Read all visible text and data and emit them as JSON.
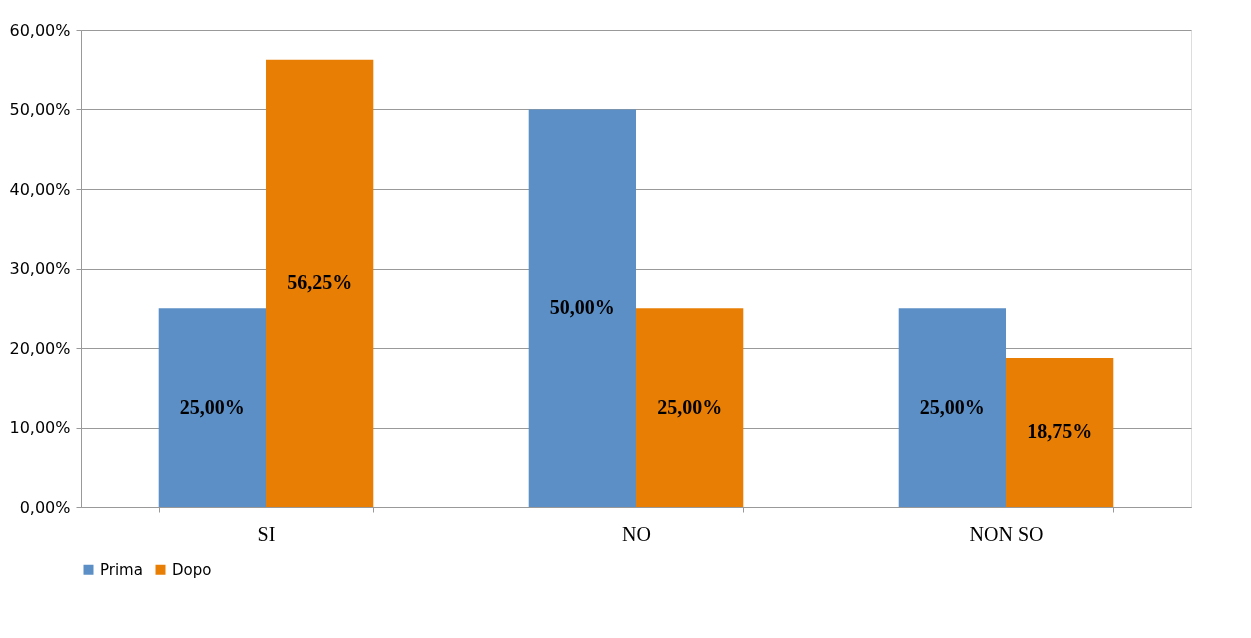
{
  "chart_data": {
    "type": "bar",
    "categories": [
      "SI",
      "NO",
      "NON SO"
    ],
    "series": [
      {
        "name": "Prima",
        "color": "#5b8fc6",
        "values": [
          25,
          50,
          25
        ],
        "value_labels": [
          "25,00%",
          "50,00%",
          "25,00%"
        ]
      },
      {
        "name": "Dopo",
        "color": "#e87e04",
        "values": [
          56.25,
          25,
          18.75
        ],
        "value_labels": [
          "56,25%",
          "25,00%",
          "18,75%"
        ]
      }
    ],
    "ylim": [
      0,
      60
    ],
    "yticks": [
      {
        "value": 0,
        "label": "0,00%"
      },
      {
        "value": 10,
        "label": "10,00%"
      },
      {
        "value": 20,
        "label": "20,00%"
      },
      {
        "value": 30,
        "label": "30,00%"
      },
      {
        "value": 40,
        "label": "40,00%"
      },
      {
        "value": 50,
        "label": "50,00%"
      },
      {
        "value": 60,
        "label": "60,00%"
      }
    ],
    "grid": "y",
    "legend": "bottom"
  }
}
